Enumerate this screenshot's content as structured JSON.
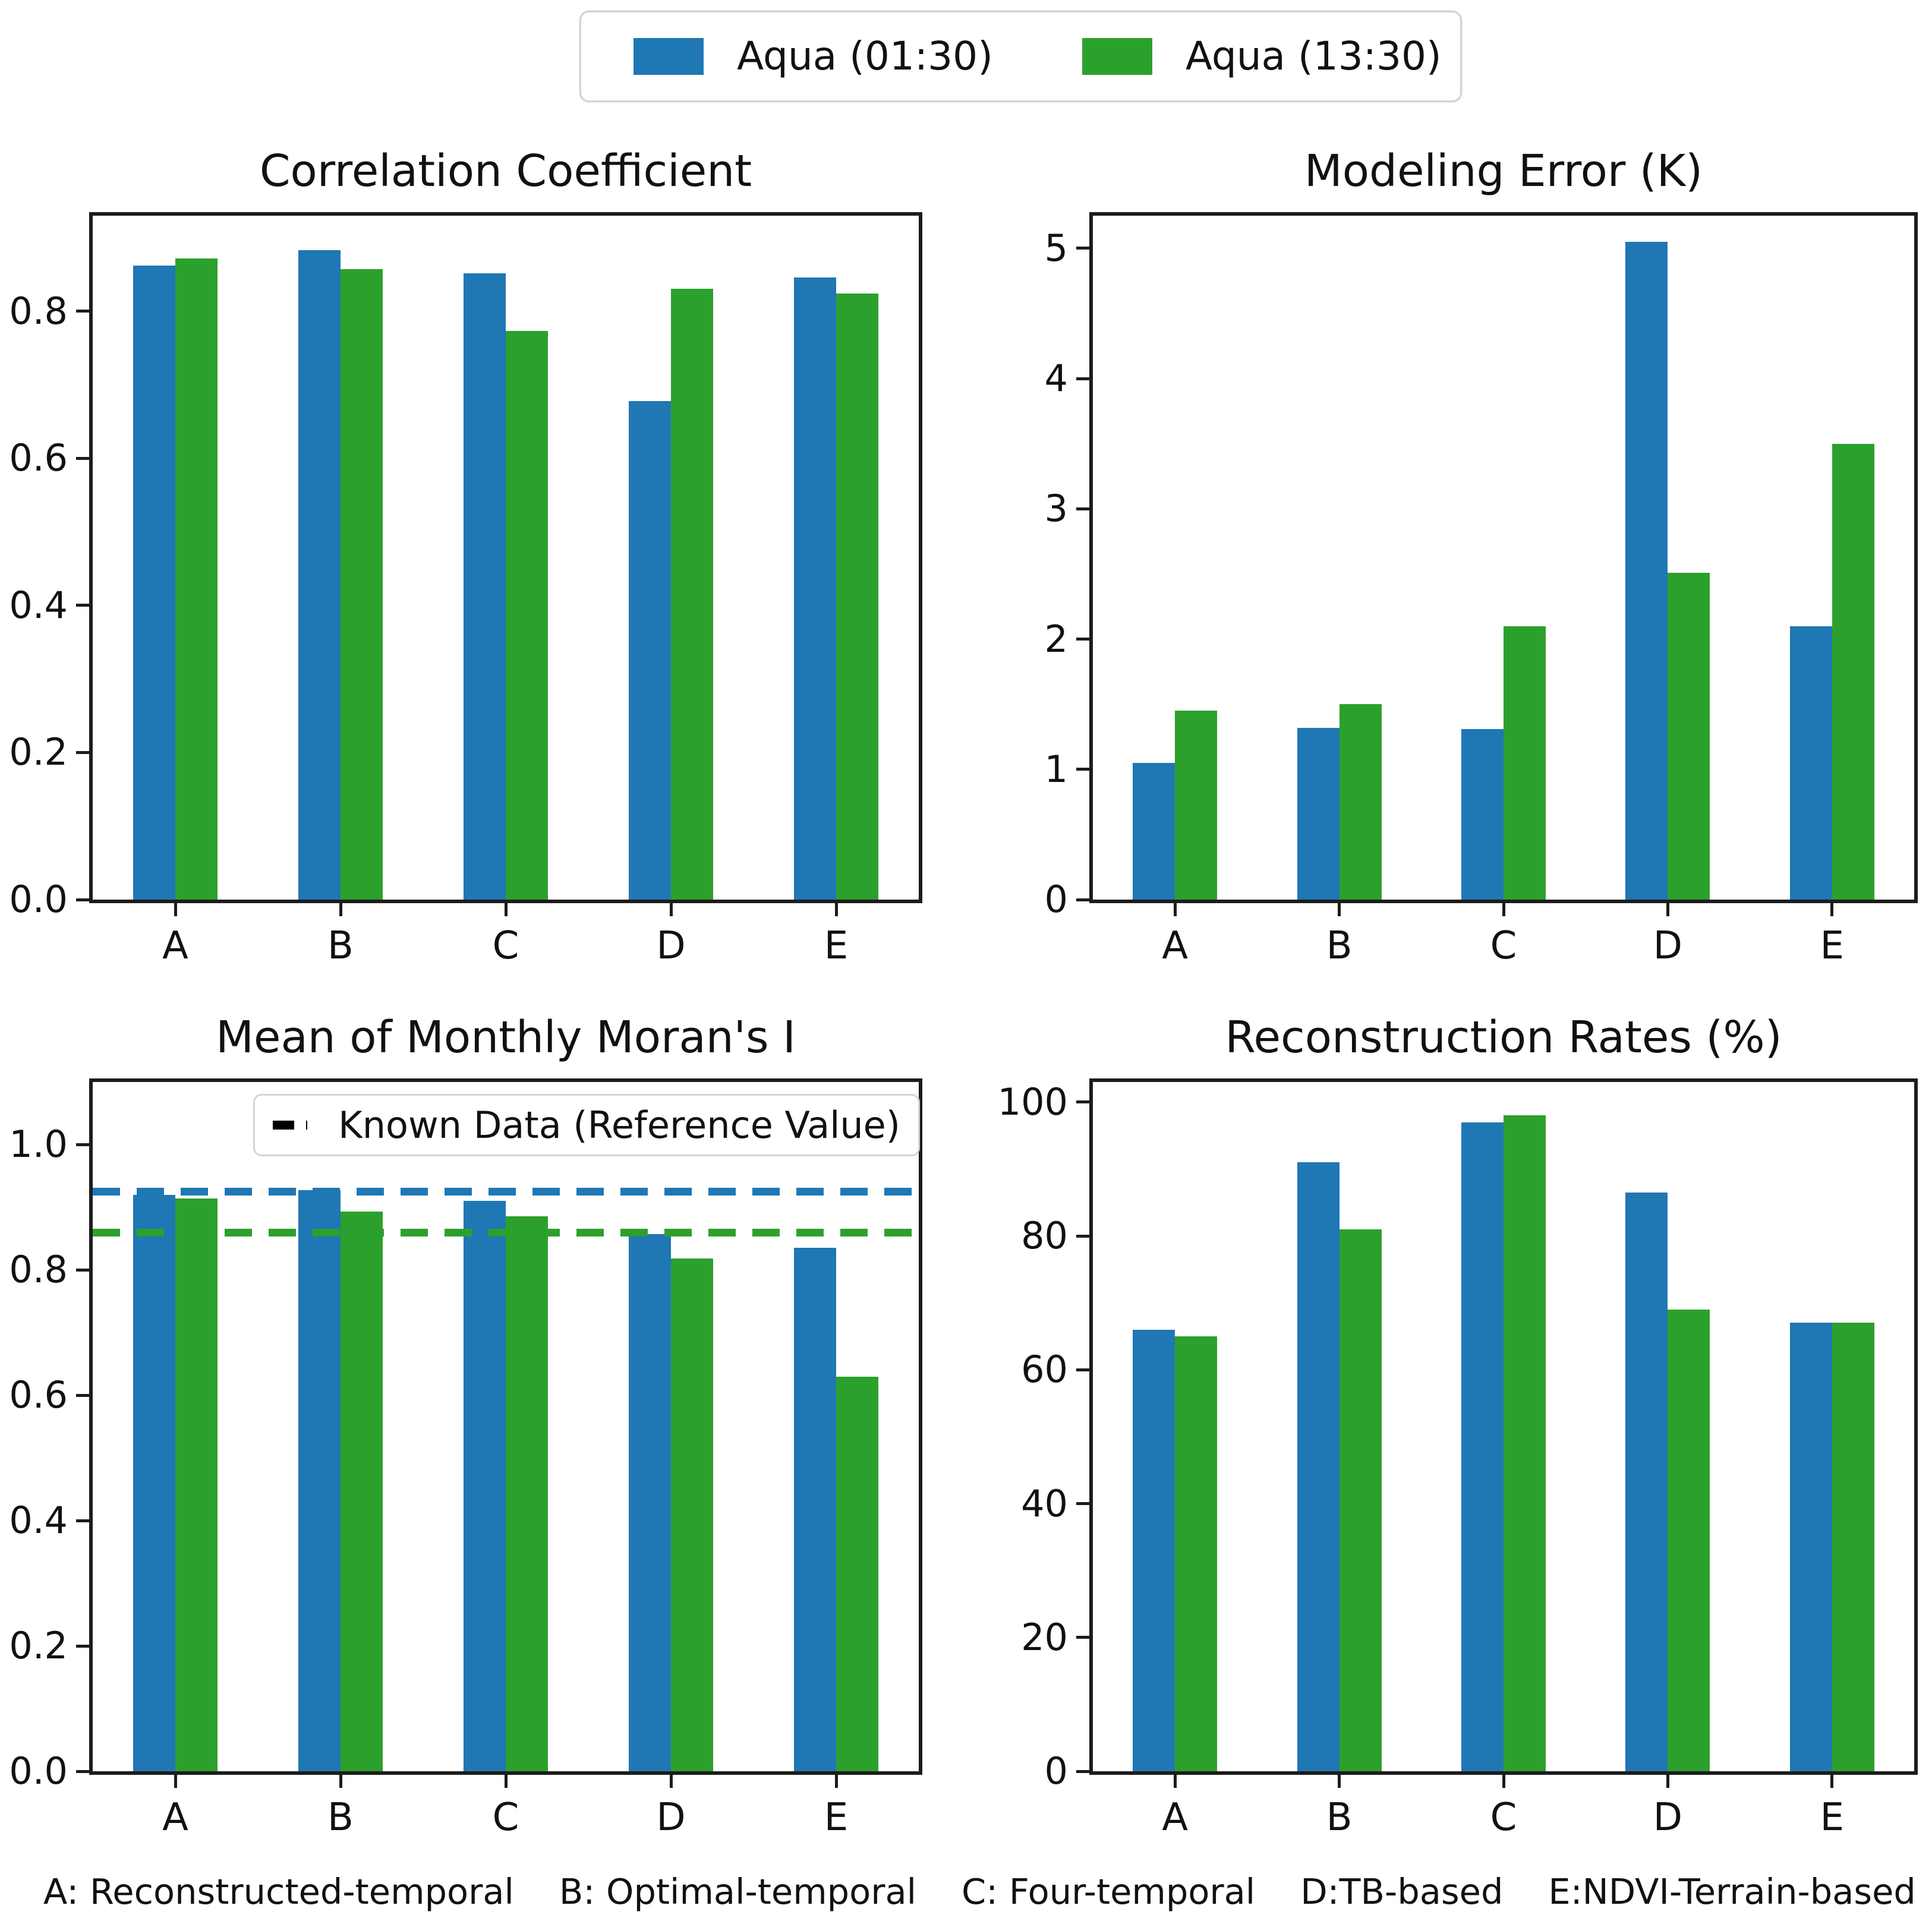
{
  "colors": {
    "blue": "#1f77b4",
    "green": "#2ca02c",
    "axis": "#1c1c1c",
    "legend_border": "#d4d4d4"
  },
  "legend": {
    "items": [
      {
        "label": "Aqua (01:30)",
        "color": "blue"
      },
      {
        "label": "Aqua (13:30)",
        "color": "green"
      }
    ]
  },
  "chart_data": [
    {
      "type": "bar",
      "title": "Correlation Coefficient",
      "categories": [
        "A",
        "B",
        "C",
        "D",
        "E"
      ],
      "series": [
        {
          "name": "Aqua (01:30)",
          "color": "blue",
          "values": [
            0.862,
            0.883,
            0.852,
            0.678,
            0.846
          ]
        },
        {
          "name": "Aqua (13:30)",
          "color": "green",
          "values": [
            0.872,
            0.857,
            0.773,
            0.831,
            0.824
          ]
        }
      ],
      "ylim": [
        0,
        0.93
      ],
      "yticks": [
        0.0,
        0.2,
        0.4,
        0.6,
        0.8
      ],
      "ytick_labels": [
        "0.0",
        "0.2",
        "0.4",
        "0.6",
        "0.8"
      ],
      "grid": false,
      "legend_position": "figure-top"
    },
    {
      "type": "bar",
      "title": "Modeling Error (K)",
      "categories": [
        "A",
        "B",
        "C",
        "D",
        "E"
      ],
      "series": [
        {
          "name": "Aqua (01:30)",
          "color": "blue",
          "values": [
            1.05,
            1.32,
            1.31,
            5.05,
            2.1
          ]
        },
        {
          "name": "Aqua (13:30)",
          "color": "green",
          "values": [
            1.45,
            1.5,
            2.1,
            2.51,
            3.5
          ]
        }
      ],
      "ylim": [
        0,
        5.25
      ],
      "yticks": [
        0,
        1,
        2,
        3,
        4,
        5
      ],
      "ytick_labels": [
        "0",
        "1",
        "2",
        "3",
        "4",
        "5"
      ],
      "grid": false,
      "legend_position": "figure-top"
    },
    {
      "type": "bar",
      "title": "Mean of Monthly Moran's I",
      "categories": [
        "A",
        "B",
        "C",
        "D",
        "E"
      ],
      "series": [
        {
          "name": "Aqua (01:30)",
          "color": "blue",
          "values": [
            0.92,
            0.927,
            0.91,
            0.857,
            0.835
          ]
        },
        {
          "name": "Aqua (13:30)",
          "color": "green",
          "values": [
            0.914,
            0.893,
            0.886,
            0.818,
            0.63
          ]
        }
      ],
      "ylim": [
        0,
        1.1
      ],
      "yticks": [
        0.0,
        0.2,
        0.4,
        0.6,
        0.8,
        1.0
      ],
      "ytick_labels": [
        "0.0",
        "0.2",
        "0.4",
        "0.6",
        "0.8",
        "1.0"
      ],
      "grid": false,
      "ref_lines": [
        {
          "name": "Known Data reference (01:30)",
          "color": "blue",
          "value": 0.925,
          "style": "dashed"
        },
        {
          "name": "Known Data reference (13:30)",
          "color": "green",
          "value": 0.86,
          "style": "dashed"
        }
      ],
      "inner_legend": {
        "label": "Known Data (Reference Value)",
        "sample": "black-dashed-line"
      }
    },
    {
      "type": "bar",
      "title": "Reconstruction Rates (%)",
      "categories": [
        "A",
        "B",
        "C",
        "D",
        "E"
      ],
      "series": [
        {
          "name": "Aqua (01:30)",
          "color": "blue",
          "values": [
            66,
            91,
            97,
            86.5,
            67
          ]
        },
        {
          "name": "Aqua (13:30)",
          "color": "green",
          "values": [
            65,
            81,
            98,
            69,
            67
          ]
        }
      ],
      "ylim": [
        0,
        103
      ],
      "yticks": [
        0,
        20,
        40,
        60,
        80,
        100
      ],
      "ytick_labels": [
        "0",
        "20",
        "40",
        "60",
        "80",
        "100"
      ],
      "grid": false,
      "legend_position": "figure-top"
    }
  ],
  "footnote": {
    "items": [
      "A: Reconstructed-temporal",
      "B: Optimal-temporal",
      "C: Four-temporal",
      "D:TB-based",
      "E:NDVI-Terrain-based"
    ]
  }
}
